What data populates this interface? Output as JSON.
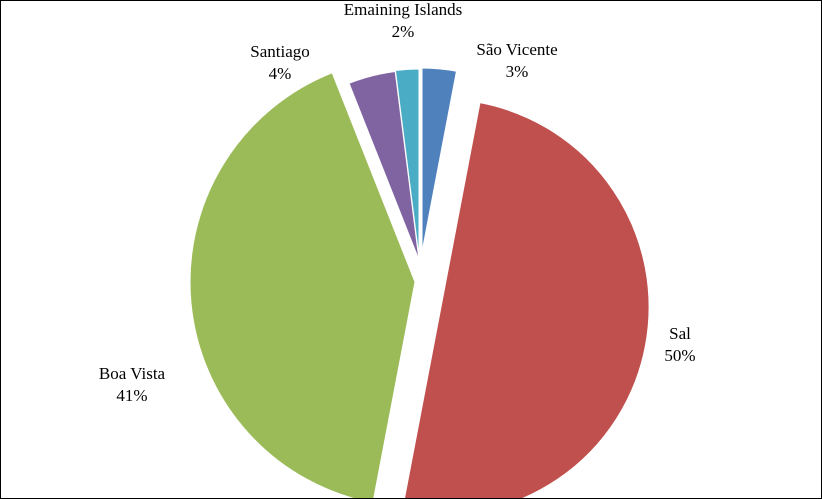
{
  "chart_data": {
    "type": "pie",
    "title": "",
    "exploded": true,
    "legend": "none",
    "slices": [
      {
        "name": "São Vicente",
        "value": 3,
        "label": "3%",
        "color": "#4F81BD"
      },
      {
        "name": "Sal",
        "value": 50,
        "label": "50%",
        "color": "#C0504D"
      },
      {
        "name": "Boa Vista",
        "value": 41,
        "label": "41%",
        "color": "#9BBB59"
      },
      {
        "name": "Santiago",
        "value": 4,
        "label": "4%",
        "color": "#8064A2"
      },
      {
        "name": "Emaining Islands",
        "value": 2,
        "label": "2%",
        "color": "#4BACC6"
      }
    ]
  }
}
